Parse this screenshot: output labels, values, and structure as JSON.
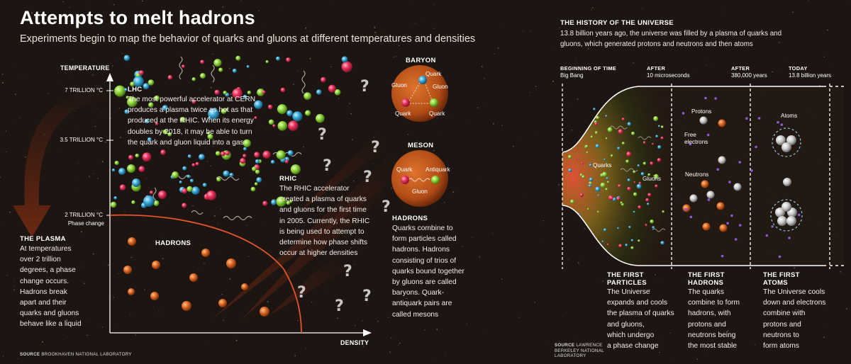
{
  "title": "Attempts to melt hadrons",
  "subtitle": "Experiments begin to map the behavior of quarks and gluons at different temperatures and densities",
  "phase_diagram": {
    "y_axis_label": "TEMPERATURE",
    "x_axis_label": "DENSITY",
    "ticks": [
      {
        "label": "7 TRILLION °C"
      },
      {
        "label": "3.5 TRILLION °C"
      },
      {
        "label": "2 TRILLION °C"
      }
    ],
    "phase_change_label": "Phase change",
    "hadrons_label": "HADRONS",
    "lhc": {
      "heading": "LHC",
      "lines": [
        "The most powerful accelerator at CERN",
        "produces a plasma twice as hot as that",
        "produced at the RHIC. When its energy",
        "doubles by 2018, it may be able to turn",
        "the quark and gluon liquid into a gas"
      ]
    },
    "rhic": {
      "heading": "RHIC",
      "lines": [
        "The RHIC accelerator",
        "created a plasma of quarks",
        "and gluons for the first time",
        "in 2005. Currently, the RHIC",
        "is being used to attempt to",
        "determine how phase shifts",
        "occur at higher densities"
      ]
    },
    "plasma": {
      "heading": "THE PLASMA",
      "lines": [
        "At temperatures",
        "over 2 trillion",
        "degrees, a phase",
        "change occurs.",
        "Hadrons break",
        "apart and their",
        "quarks and gluons",
        "behave like a liquid"
      ]
    },
    "question_mark": "?",
    "source": {
      "label": "SOURCE",
      "text": "BROOKHAVEN NATIONAL LABORATORY"
    }
  },
  "baryon": {
    "title": "BARYON",
    "quark": "Quark",
    "gluon": "Gluon"
  },
  "meson": {
    "title": "MESON",
    "quark": "Quark",
    "antiquark": "Antiquark",
    "gluon": "Gluon"
  },
  "hadrons_box": {
    "heading": "HADRONS",
    "lines": [
      "Quarks combine to",
      "form particles called",
      "hadrons. Hadrons",
      "consisting of trios of",
      "quarks bound together",
      "by gluons are called",
      "baryons. Quark-",
      "antiquark pairs are",
      "called mesons"
    ]
  },
  "history": {
    "heading": "THE HISTORY OF THE UNIVERSE",
    "intro_lines": [
      "13.8 billion years ago, the universe was filled by a plasma of quarks and",
      "gluons, which generated protons and neutrons and then atoms"
    ],
    "timeline": [
      {
        "top": "BEGINNING OF TIME",
        "bottom": "Big Bang"
      },
      {
        "top": "AFTER",
        "bottom": "10 microseconds"
      },
      {
        "top": "AFTER",
        "bottom": "380,000 years"
      },
      {
        "top": "TODAY",
        "bottom": "13.8 billion years"
      }
    ],
    "labels": {
      "quarks": "Quarks",
      "gluons": "Gluons",
      "protons": "Protons",
      "free_electrons": [
        "Free",
        "electrons"
      ],
      "neutrons": "Neutrons",
      "atoms": "Atoms"
    },
    "captions": [
      {
        "heading": [
          "THE FIRST",
          "PARTICLES"
        ],
        "lines": [
          "The Universe",
          "expands and cools",
          "the plasma of quarks",
          "and gluons,",
          "which undergo",
          "a phase change"
        ]
      },
      {
        "heading": [
          "THE FIRST",
          "HADRONS"
        ],
        "lines": [
          "The quarks",
          "combine to form",
          "hadrons, with",
          "protons and",
          "neutrons being",
          "the most stable"
        ]
      },
      {
        "heading": [
          "THE FIRST",
          "ATOMS"
        ],
        "lines": [
          "The Universe cools",
          "down and electrons",
          "combine with",
          "protons and",
          "neutrons to",
          "form atoms"
        ]
      }
    ],
    "source": {
      "label": "SOURCE",
      "lines": [
        "LAWRENCE",
        "BERKELEY NATIONAL",
        "LABORATORY"
      ]
    }
  },
  "colors": {
    "quark_red": "#e8305a",
    "quark_green": "#8fd63a",
    "quark_blue": "#3aa9d8",
    "hadron_orange": "#d9621e",
    "phase_line": "#e5542a",
    "background": "#1c1512"
  }
}
